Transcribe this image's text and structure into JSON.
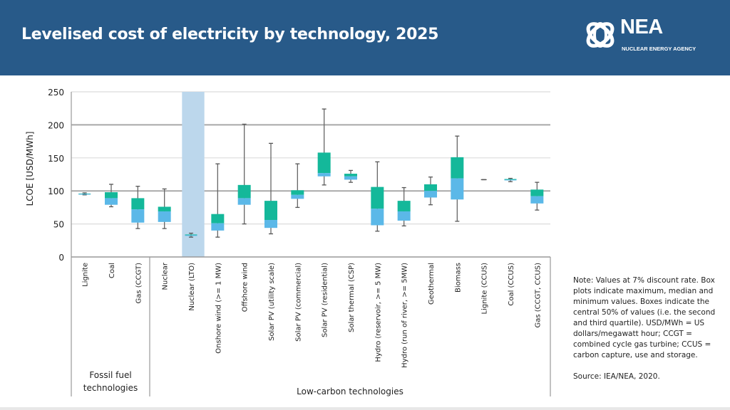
{
  "header": {
    "title": "Levelised cost of electricity by technology, 2025",
    "logo_name": "NEA",
    "logo_subtitle": "NUCLEAR ENERGY AGENCY"
  },
  "colors": {
    "header_bg": "#285a89",
    "upper_box": "#14b89a",
    "lower_box": "#5bb8e8",
    "highlight_band": "#bcd7ec"
  },
  "chart_data": {
    "type": "box",
    "title": "Levelised cost of electricity by technology, 2025",
    "xlabel": "",
    "ylabel": "LCOE [USD/MWh]",
    "ylim": [
      0,
      250
    ],
    "yticks": [
      0,
      50,
      100,
      150,
      200,
      250
    ],
    "grid": true,
    "highlighted_category": "Nuclear (LTO)",
    "groups": [
      {
        "label": "Fossil fuel technologies",
        "categories": [
          "Lignite",
          "Coal",
          "Gas (CCGT)"
        ]
      },
      {
        "label": "Low-carbon technologies",
        "categories": [
          "Nuclear",
          "Nuclear (LTO)",
          "Onshore wind (>= 1 MW)",
          "Offshore wind",
          "Solar PV (utility scale)",
          "Solar PV (commercial)",
          "Solar PV (residential)",
          "Solar thermal (CSP)",
          "Hydro (reservoir, >= 5 MW)",
          "Hydro (run of river, >= 5MW)",
          "Geothermal",
          "Biomass",
          "Lignite (CCUS)",
          "Coal (CCUS)",
          "Gas (CCGT, CCUS)"
        ]
      }
    ],
    "series": [
      {
        "category": "Lignite",
        "min": 94,
        "q1": 95,
        "median": 95.5,
        "q3": 96,
        "max": 97
      },
      {
        "category": "Coal",
        "min": 76,
        "q1": 79,
        "median": 89,
        "q3": 98,
        "max": 110
      },
      {
        "category": "Gas (CCGT)",
        "min": 43,
        "q1": 52,
        "median": 72,
        "q3": 89,
        "max": 107
      },
      {
        "category": "Nuclear",
        "min": 43,
        "q1": 53,
        "median": 69,
        "q3": 76,
        "max": 103
      },
      {
        "category": "Nuclear (LTO)",
        "min": 30,
        "q1": 32,
        "median": 33,
        "q3": 34,
        "max": 36
      },
      {
        "category": "Onshore wind (>= 1 MW)",
        "min": 30,
        "q1": 40,
        "median": 51,
        "q3": 65,
        "max": 141
      },
      {
        "category": "Offshore wind",
        "min": 50,
        "q1": 79,
        "median": 89,
        "q3": 109,
        "max": 201
      },
      {
        "category": "Solar PV (utility scale)",
        "min": 35,
        "q1": 44,
        "median": 56,
        "q3": 85,
        "max": 172
      },
      {
        "category": "Solar PV (commercial)",
        "min": 75,
        "q1": 88,
        "median": 94,
        "q3": 101,
        "max": 141
      },
      {
        "category": "Solar PV (residential)",
        "min": 109,
        "q1": 122,
        "median": 127,
        "q3": 158,
        "max": 224
      },
      {
        "category": "Solar thermal (CSP)",
        "min": 113,
        "q1": 117,
        "median": 122,
        "q3": 126,
        "max": 131
      },
      {
        "category": "Hydro (reservoir, >= 5 MW)",
        "min": 39,
        "q1": 48,
        "median": 73,
        "q3": 106,
        "max": 144
      },
      {
        "category": "Hydro (run of river, >= 5MW)",
        "min": 47,
        "q1": 55,
        "median": 69,
        "q3": 85,
        "max": 105
      },
      {
        "category": "Geothermal",
        "min": 79,
        "q1": 90,
        "median": 100,
        "q3": 110,
        "max": 121
      },
      {
        "category": "Biomass",
        "min": 54,
        "q1": 87,
        "median": 119,
        "q3": 151,
        "max": 183
      },
      {
        "category": "Lignite (CCUS)",
        "min": 117,
        "q1": 117,
        "median": 117,
        "q3": 117,
        "max": 117
      },
      {
        "category": "Coal (CCUS)",
        "min": 114,
        "q1": 116,
        "median": 117,
        "q3": 118,
        "max": 119
      },
      {
        "category": "Gas (CCGT, CCUS)",
        "min": 71,
        "q1": 81,
        "median": 92,
        "q3": 102,
        "max": 113
      }
    ]
  },
  "note": {
    "text": "Note: Values at 7% discount rate. Box plots indicate maximum, median and minimum values. Boxes indicate the central 50% of values (i.e. the second and third quartile). USD/MWh = US dollars/megawatt hour; CCGT = combined cycle gas turbine; CCUS = carbon capture, use and storage.",
    "source": "Source: IEA/NEA, 2020."
  }
}
